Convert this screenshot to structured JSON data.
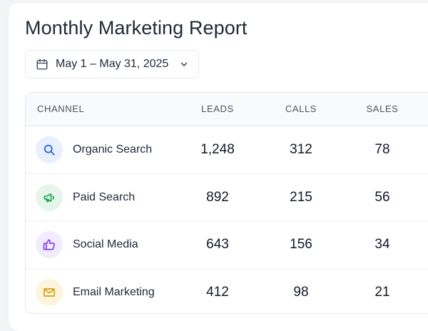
{
  "report": {
    "title": "Monthly Marketing Report",
    "date_range": "May 1 – May 31, 2025"
  },
  "table": {
    "headers": {
      "channel": "CHANNEL",
      "leads": "LEADS",
      "calls": "CALLS",
      "sales": "SALES"
    },
    "rows": [
      {
        "channel": "Organic Search",
        "leads": "1,248",
        "calls": "312",
        "sales": "78",
        "icon": "search-icon",
        "icon_color": "#2563eb",
        "icon_bg": "#e8f0fd"
      },
      {
        "channel": "Paid Search",
        "leads": "892",
        "calls": "215",
        "sales": "56",
        "icon": "megaphone-icon",
        "icon_color": "#16a34a",
        "icon_bg": "#e7f6ec"
      },
      {
        "channel": "Social Media",
        "leads": "643",
        "calls": "156",
        "sales": "34",
        "icon": "thumbs-up-icon",
        "icon_color": "#7c3aed",
        "icon_bg": "#f1ebfd"
      },
      {
        "channel": "Email Marketing",
        "leads": "412",
        "calls": "98",
        "sales": "21",
        "icon": "mail-icon",
        "icon_color": "#d4a017",
        "icon_bg": "#fdf4dc"
      }
    ]
  }
}
